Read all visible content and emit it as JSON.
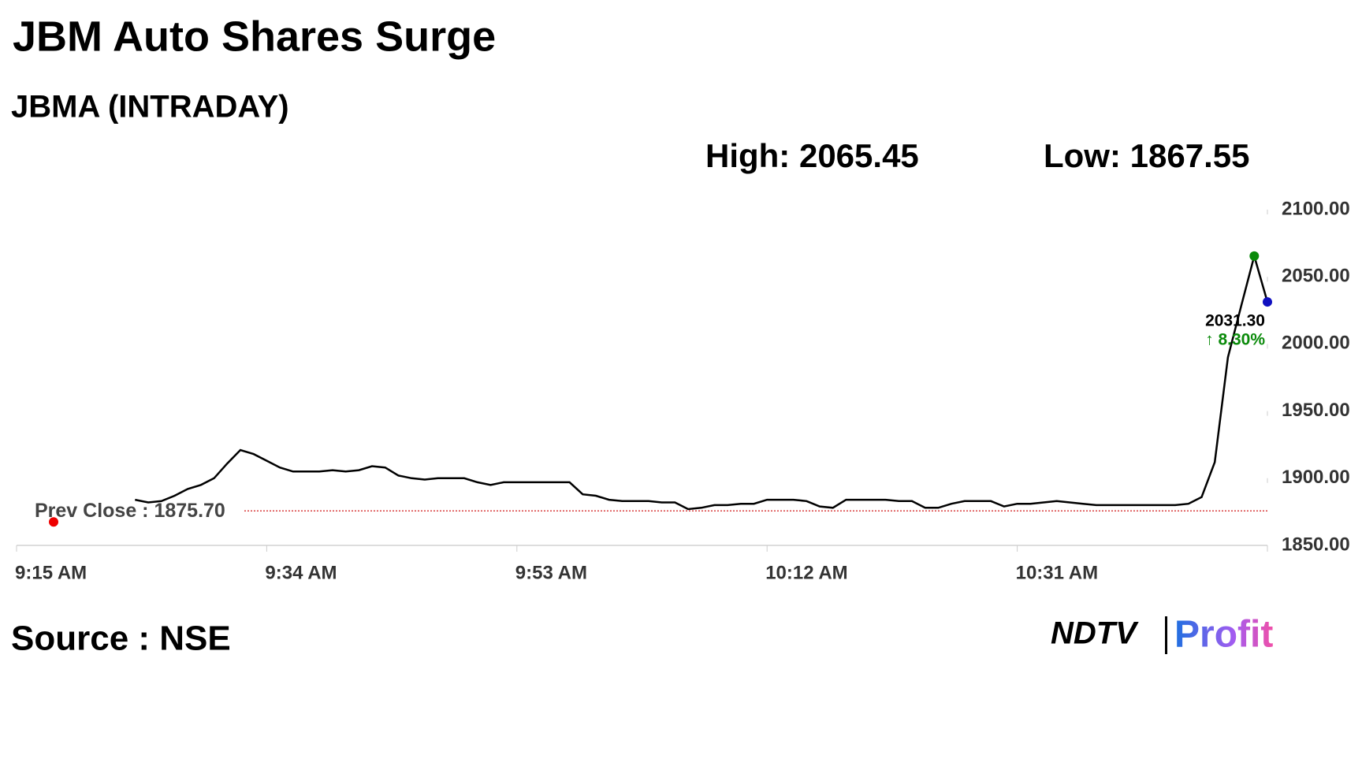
{
  "chart_data": {
    "type": "line",
    "title": "JBM Auto Shares Surge",
    "subtitle": "JBMA (INTRADAY)",
    "high_label": "High: 2065.45",
    "low_label": "Low: 1867.55",
    "prev_close_label": "Prev Close : 1875.70",
    "prev_close": 1875.7,
    "last_label": "2031.30",
    "change_label": "↑ 8.30%",
    "source": "Source : NSE",
    "logo": {
      "left": "NDTV",
      "right": "Profit"
    },
    "x": [
      "9:15 AM",
      "9:16 AM",
      "9:24 AM",
      "9:25 AM",
      "9:26 AM",
      "9:27 AM",
      "9:28 AM",
      "9:29 AM",
      "9:30 AM",
      "9:31 AM",
      "9:32 AM",
      "9:33 AM",
      "9:34 AM",
      "9:35 AM",
      "9:36 AM",
      "9:37 AM",
      "9:38 AM",
      "9:39 AM",
      "9:40 AM",
      "9:41 AM",
      "9:42 AM",
      "9:43 AM",
      "9:44 AM",
      "9:45 AM",
      "9:46 AM",
      "9:47 AM",
      "9:48 AM",
      "9:49 AM",
      "9:50 AM",
      "9:51 AM",
      "9:52 AM",
      "9:53 AM",
      "9:54 AM",
      "9:55 AM",
      "9:56 AM",
      "9:57 AM",
      "9:58 AM",
      "9:59 AM",
      "10:00 AM",
      "10:01 AM",
      "10:02 AM",
      "10:03 AM",
      "10:04 AM",
      "10:05 AM",
      "10:06 AM",
      "10:07 AM",
      "10:08 AM",
      "10:09 AM",
      "10:10 AM",
      "10:11 AM",
      "10:12 AM",
      "10:13 AM",
      "10:14 AM",
      "10:15 AM",
      "10:16 AM",
      "10:17 AM",
      "10:18 AM",
      "10:19 AM",
      "10:20 AM",
      "10:21 AM",
      "10:22 AM",
      "10:23 AM",
      "10:24 AM",
      "10:25 AM",
      "10:26 AM",
      "10:27 AM",
      "10:28 AM",
      "10:29 AM",
      "10:30 AM",
      "10:31 AM",
      "10:32 AM",
      "10:33 AM",
      "10:34 AM",
      "10:35 AM",
      "10:36 AM",
      "10:37 AM",
      "10:38 AM",
      "10:39 AM",
      "10:40 AM",
      "10:41 AM",
      "10:42 AM",
      "10:43 AM",
      "10:44 AM",
      "10:45 AM",
      "10:46 AM",
      "10:47 AM",
      "10:48 AM",
      "10:49 AM",
      "10:50 AM"
    ],
    "series": [
      {
        "name": "JBMA",
        "color": "#000000",
        "values": [
          1874,
          null,
          1884,
          1882,
          1883,
          1887,
          1892,
          1895,
          1900,
          1911,
          1921,
          1918,
          1913,
          1908,
          1905,
          1905,
          1905,
          1906,
          1905,
          1906,
          1909,
          1908,
          1902,
          1900,
          1899,
          1900,
          1900,
          1900,
          1897,
          1895,
          1897,
          1897,
          1897,
          1897,
          1897,
          1897,
          1888,
          1887,
          1884,
          1883,
          1883,
          1883,
          1882,
          1882,
          1877,
          1878,
          1880,
          1880,
          1881,
          1881,
          1884,
          1884,
          1884,
          1883,
          1879,
          1878,
          1884,
          1884,
          1884,
          1884,
          1883,
          1883,
          1878,
          1878,
          1881,
          1883,
          1883,
          1883,
          1879,
          1881,
          1881,
          1882,
          1883,
          1882,
          1881,
          1880,
          1880,
          1880,
          1880,
          1880,
          1880,
          1880,
          1881,
          1886,
          1912,
          1990,
          2028,
          2065.45,
          2031.3
        ]
      }
    ],
    "xlim": [
      "9:15 AM",
      "10:50 AM"
    ],
    "xticks": [
      "9:15 AM",
      "9:34 AM",
      "9:53 AM",
      "10:12 AM",
      "10:31 AM"
    ],
    "ylim": [
      1850,
      2100
    ],
    "yticks": [
      {
        "value": 1850,
        "label": "1850.00"
      },
      {
        "value": 1900,
        "label": "1900.00"
      },
      {
        "value": 1950,
        "label": "1950.00"
      },
      {
        "value": 2000,
        "label": "2000.00"
      },
      {
        "value": 2050,
        "label": "2050.00"
      },
      {
        "value": 2100,
        "label": "2100.00"
      }
    ]
  }
}
